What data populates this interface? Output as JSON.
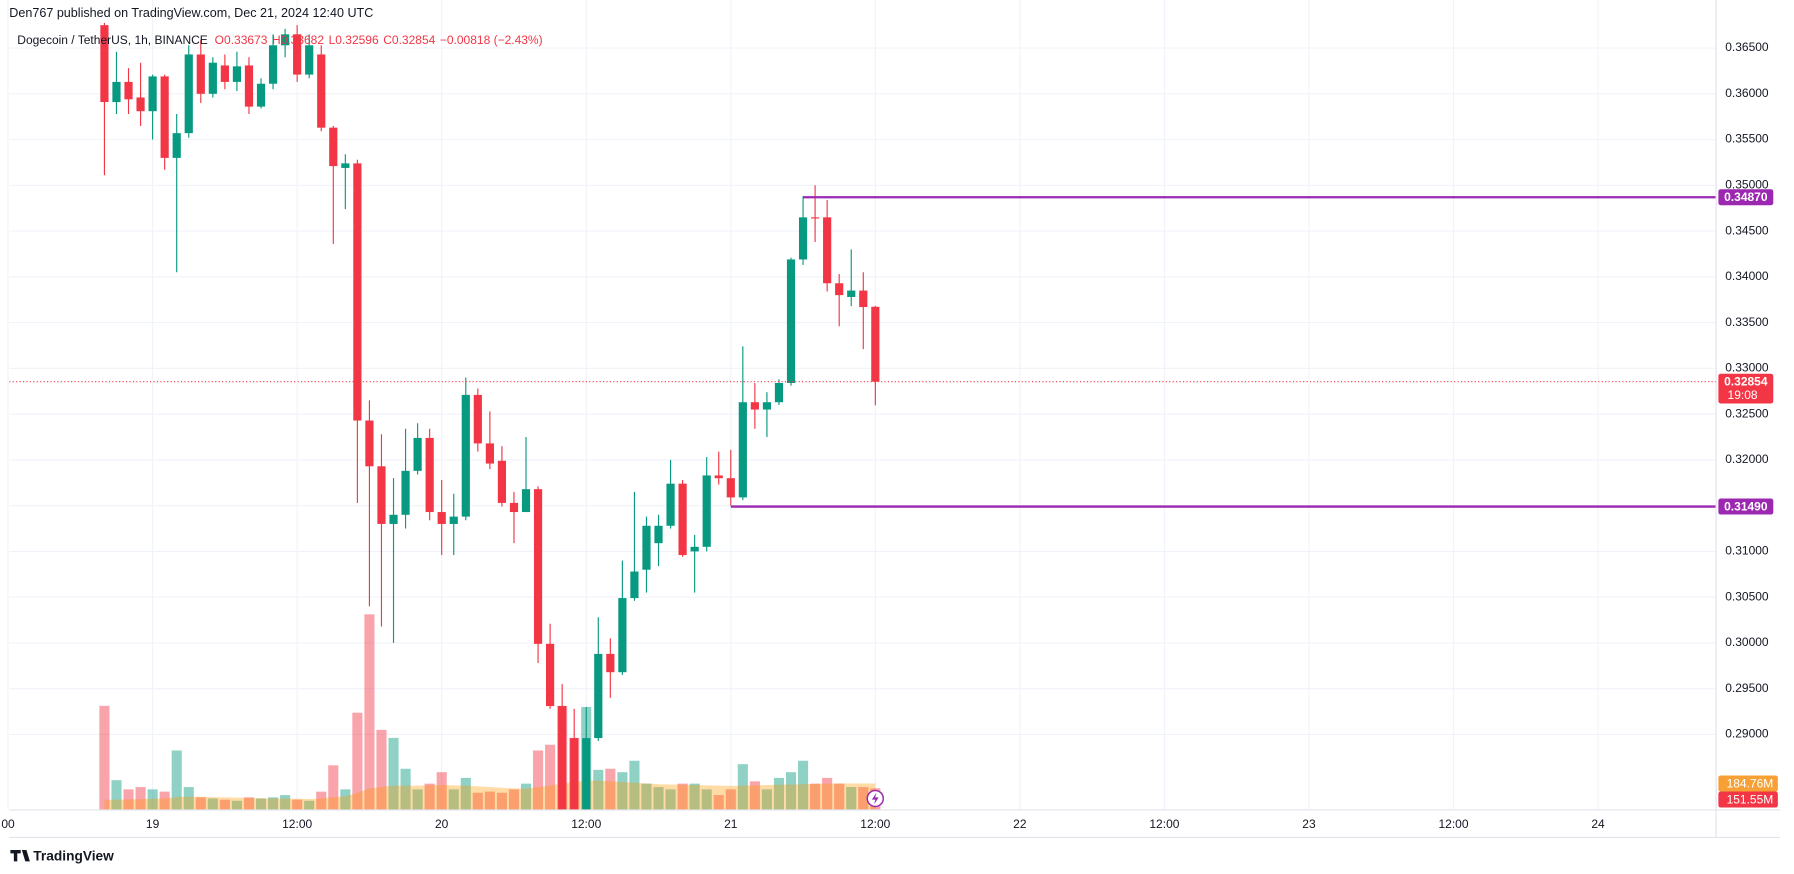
{
  "chart_data": {
    "type": "candlestick",
    "header": "Den767 published on TradingView.com, Dec 21, 2024 12:40 UTC",
    "symbol": "Dogecoin / TetherUS, 1h, BINANCE",
    "legend_values": [
      "O0.33673",
      "H0.33682",
      "L0.32596",
      "C0.32854",
      "−0.00818 (−2.43%)"
    ],
    "footer_logo": "TradingView",
    "up_color": "#089981",
    "down_color": "#f23645",
    "grid": true,
    "x": [
      -4,
      -3,
      -2,
      -1,
      0,
      1,
      2,
      3,
      4,
      5,
      6,
      7,
      8,
      9,
      10,
      11,
      12,
      13,
      14,
      15,
      16,
      17,
      18,
      19,
      20,
      21,
      22,
      23,
      24,
      25,
      26,
      27,
      28,
      29,
      30,
      31,
      32,
      33,
      34,
      35,
      36,
      37,
      38,
      39,
      40,
      41,
      42,
      43,
      44,
      45,
      46,
      47,
      48,
      49,
      50,
      51,
      52,
      53,
      54,
      55,
      56,
      57,
      58,
      59,
      60
    ],
    "open": [
      0.3675,
      0.3591,
      0.3613,
      0.3596,
      0.3581,
      0.3619,
      0.353,
      0.3557,
      0.3643,
      0.36,
      0.3631,
      0.3613,
      0.3631,
      0.3586,
      0.3611,
      0.3653,
      0.3665,
      0.3621,
      0.3643,
      0.3563,
      0.3519,
      0.3524,
      0.3243,
      0.3193,
      0.313,
      0.314,
      0.3188,
      0.3224,
      0.3143,
      0.313,
      0.3138,
      0.3271,
      0.3218,
      0.3199,
      0.3153,
      0.3143,
      0.3168,
      0.2999,
      0.2931,
      0.2896,
      0.2818,
      0.2896,
      0.2988,
      0.2968,
      0.3049,
      0.308,
      0.3109,
      0.3128,
      0.3174,
      0.31,
      0.3105,
      0.3183,
      0.318,
      0.3159,
      0.3263,
      0.3255,
      0.3263,
      0.3284,
      0.3419,
      0.3465,
      0.3465,
      0.3393,
      0.3378,
      0.3385,
      0.33673
    ],
    "high": [
      0.3684,
      0.3646,
      0.3628,
      0.3634,
      0.3621,
      0.3621,
      0.3578,
      0.3653,
      0.3659,
      0.364,
      0.3643,
      0.3646,
      0.364,
      0.3617,
      0.3665,
      0.3671,
      0.3675,
      0.3665,
      0.3653,
      0.3565,
      0.3534,
      0.3528,
      0.3265,
      0.3228,
      0.318,
      0.3234,
      0.324,
      0.3234,
      0.3178,
      0.3163,
      0.329,
      0.3278,
      0.3253,
      0.3215,
      0.3165,
      0.3225,
      0.3171,
      0.3021,
      0.2955,
      0.2928,
      0.293,
      0.3028,
      0.3005,
      0.309,
      0.3165,
      0.3138,
      0.314,
      0.32,
      0.3178,
      0.3118,
      0.3203,
      0.3209,
      0.3211,
      0.3324,
      0.3284,
      0.3274,
      0.3288,
      0.3421,
      0.3488,
      0.35,
      0.3484,
      0.3403,
      0.343,
      0.3405,
      0.33682
    ],
    "low": [
      0.3511,
      0.3578,
      0.3578,
      0.3565,
      0.355,
      0.3517,
      0.3405,
      0.3552,
      0.359,
      0.3596,
      0.3605,
      0.3603,
      0.3578,
      0.3584,
      0.3605,
      0.364,
      0.3613,
      0.3617,
      0.3559,
      0.3436,
      0.3474,
      0.3153,
      0.304,
      0.3018,
      0.3,
      0.3125,
      0.3184,
      0.3134,
      0.3096,
      0.3096,
      0.3134,
      0.3209,
      0.319,
      0.3149,
      0.3109,
      0.3143,
      0.2978,
      0.2928,
      0.2818,
      0.2818,
      0.2818,
      0.2893,
      0.294,
      0.2965,
      0.3046,
      0.3055,
      0.3084,
      0.3125,
      0.3094,
      0.3055,
      0.31,
      0.3173,
      0.315,
      0.3156,
      0.3234,
      0.3225,
      0.326,
      0.3281,
      0.3413,
      0.3438,
      0.3384,
      0.3346,
      0.3368,
      0.3321,
      0.32596
    ],
    "close": [
      0.3591,
      0.3613,
      0.3594,
      0.3581,
      0.3619,
      0.353,
      0.3557,
      0.3643,
      0.36,
      0.3634,
      0.3613,
      0.363,
      0.3586,
      0.3611,
      0.3653,
      0.3665,
      0.3621,
      0.3653,
      0.3563,
      0.3521,
      0.3524,
      0.3243,
      0.3193,
      0.313,
      0.314,
      0.3188,
      0.3224,
      0.3143,
      0.313,
      0.3138,
      0.3271,
      0.3218,
      0.3196,
      0.3153,
      0.3143,
      0.3168,
      0.2999,
      0.2931,
      0.2818,
      0.2818,
      0.2896,
      0.2988,
      0.2968,
      0.3049,
      0.3078,
      0.3128,
      0.3128,
      0.3174,
      0.3096,
      0.3105,
      0.3183,
      0.318,
      0.3159,
      0.3263,
      0.3255,
      0.3263,
      0.3284,
      0.3419,
      0.3465,
      0.3464,
      0.3393,
      0.338,
      0.3385,
      0.3367,
      0.32854
    ],
    "volume": {
      "values": [
        728,
        208,
        144,
        160,
        144,
        128,
        416,
        160,
        88,
        80,
        72,
        64,
        88,
        80,
        88,
        104,
        72,
        64,
        128,
        312,
        144,
        680,
        1368,
        560,
        504,
        288,
        144,
        184,
        264,
        144,
        224,
        120,
        128,
        120,
        144,
        184,
        416,
        456,
        728,
        504,
        720,
        280,
        288,
        264,
        344,
        184,
        160,
        144,
        184,
        184,
        144,
        104,
        144,
        320,
        200,
        144,
        224,
        264,
        344,
        184,
        224,
        184,
        160,
        160,
        151.55
      ],
      "value_label": "151.55M",
      "up_color": "rgba(8,153,129,0.45)",
      "down_color": "rgba(242,54,69,0.45)",
      "tag_color": "#f23645",
      "ylim": [
        0,
        5504
      ]
    },
    "volume_ma": {
      "values": [
        70,
        72,
        74,
        76,
        78,
        80,
        90,
        92,
        92,
        90,
        88,
        86,
        84,
        82,
        80,
        80,
        78,
        76,
        80,
        90,
        95,
        120,
        150,
        160,
        170,
        170,
        170,
        172,
        175,
        172,
        170,
        165,
        160,
        155,
        150,
        150,
        160,
        170,
        185,
        195,
        205,
        205,
        200,
        195,
        190,
        185,
        180,
        178,
        176,
        174,
        172,
        170,
        168,
        170,
        172,
        174,
        176,
        178,
        180,
        182,
        184,
        185,
        185,
        185,
        184.76
      ],
      "value_label": "184.76M",
      "color": "rgba(255,152,0,0.35)",
      "tag_color": "#f7a035"
    },
    "levels": [
      {
        "value": 0.3487,
        "label": "0.34870",
        "start": 54,
        "color": "#9c27b0"
      },
      {
        "value": 0.3149,
        "label": "0.31490",
        "start": 48,
        "color": "#9c27b0"
      }
    ],
    "last_price": {
      "value": 0.32854,
      "label": "0.32854",
      "countdown": "19:08",
      "color": "#f23645"
    },
    "xlim": [
      -11.9,
      129.8
    ],
    "ylim": [
      0.28175,
      0.36775
    ],
    "xticks": [
      {
        "value": -12,
        "label": "00"
      },
      {
        "value": 0,
        "label": "19"
      },
      {
        "value": 12,
        "label": "12:00"
      },
      {
        "value": 24,
        "label": "20"
      },
      {
        "value": 36,
        "label": "12:00"
      },
      {
        "value": 48,
        "label": "21"
      },
      {
        "value": 60,
        "label": "12:00"
      },
      {
        "value": 72,
        "label": "22"
      },
      {
        "value": 84,
        "label": "12:00"
      },
      {
        "value": 96,
        "label": "23"
      },
      {
        "value": 108,
        "label": "12:00"
      },
      {
        "value": 120,
        "label": "24"
      }
    ],
    "yticks": [
      {
        "value": 0.29,
        "label": "0.29000"
      },
      {
        "value": 0.295,
        "label": "0.29500"
      },
      {
        "value": 0.3,
        "label": "0.30000"
      },
      {
        "value": 0.305,
        "label": "0.30500"
      },
      {
        "value": 0.31,
        "label": "0.31000"
      },
      {
        "value": 0.315,
        "label": "0.31500"
      },
      {
        "value": 0.32,
        "label": "0.32000"
      },
      {
        "value": 0.325,
        "label": "0.32500"
      },
      {
        "value": 0.33,
        "label": "0.33000"
      },
      {
        "value": 0.335,
        "label": "0.33500"
      },
      {
        "value": 0.34,
        "label": "0.34000"
      },
      {
        "value": 0.345,
        "label": "0.34500"
      },
      {
        "value": 0.35,
        "label": "0.35000"
      },
      {
        "value": 0.355,
        "label": "0.35500"
      },
      {
        "value": 0.36,
        "label": "0.36000"
      },
      {
        "value": 0.365,
        "label": "0.36500"
      }
    ]
  }
}
